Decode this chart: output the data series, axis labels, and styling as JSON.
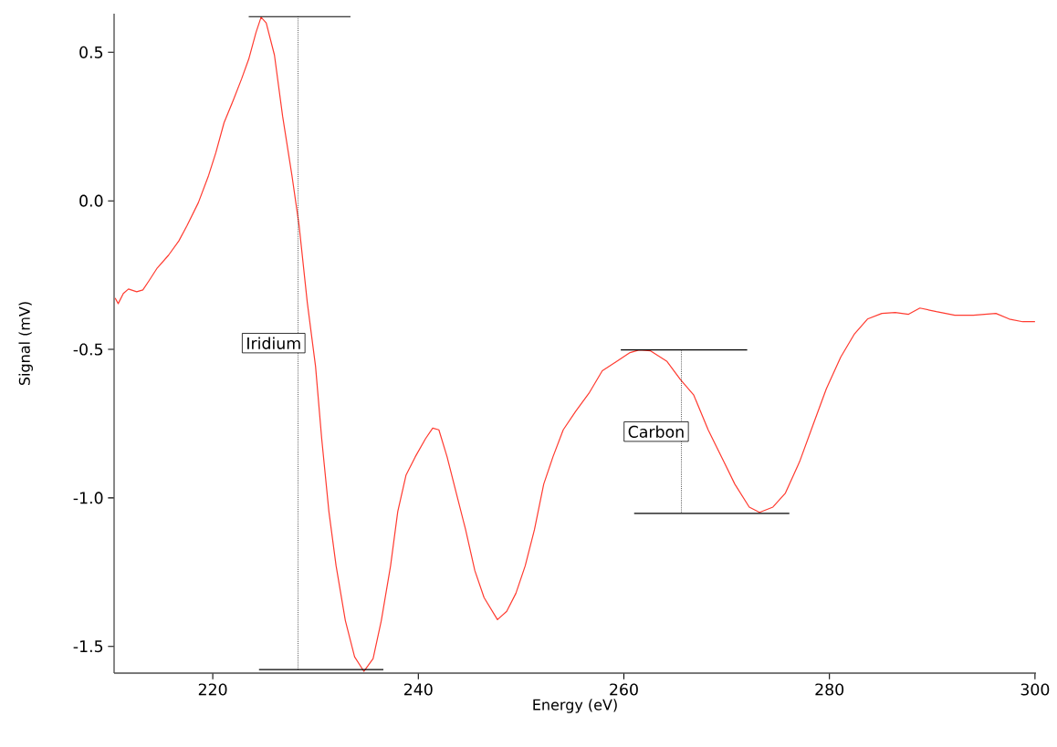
{
  "chart_data": {
    "type": "line",
    "xlabel": "Energy (eV)",
    "ylabel": "Signal (mV)",
    "xlim": [
      210.4,
      300.1
    ],
    "ylim": [
      -1.59,
      0.63
    ],
    "xticks": [
      220,
      240,
      260,
      280,
      300
    ],
    "yticks": [
      {
        "value": -1.5,
        "label": "-1.5"
      },
      {
        "value": -1.0,
        "label": "-1.0"
      },
      {
        "value": -0.5,
        "label": "-0.5"
      },
      {
        "value": 0.0,
        "label": "0.0"
      },
      {
        "value": 0.5,
        "label": "0.5"
      }
    ],
    "grid": false,
    "marker": "none",
    "series": [
      {
        "color": "#ff3b30",
        "line_style": "solid",
        "x": [
          210.5,
          210.8,
          211.3,
          211.8,
          212.6,
          213.2,
          213.8,
          214.6,
          215.7,
          216.7,
          217.5,
          218.6,
          219.6,
          220.3,
          221.1,
          222.0,
          222.8,
          223.5,
          224.2,
          224.7,
          225.2,
          226.0,
          226.8,
          227.7,
          228.4,
          229.2,
          230.0,
          230.6,
          231.3,
          232.0,
          232.9,
          233.8,
          234.7,
          235.6,
          236.4,
          237.3,
          238.0,
          238.8,
          239.7,
          240.7,
          241.4,
          242.0,
          242.8,
          243.7,
          244.6,
          245.5,
          246.4,
          247.7,
          248.6,
          249.5,
          250.4,
          251.3,
          252.2,
          253.1,
          254.1,
          255.3,
          256.6,
          257.9,
          259.3,
          260.6,
          261.5,
          262.6,
          264.2,
          265.5,
          266.8,
          268.2,
          269.5,
          270.8,
          272.2,
          273.2,
          274.5,
          275.7,
          277.1,
          278.4,
          279.7,
          281.1,
          282.4,
          283.7,
          285.1,
          286.4,
          287.7,
          288.8,
          290.4,
          292.2,
          294.0,
          296.2,
          297.5,
          298.8,
          300.0
        ],
        "values": [
          -0.327,
          -0.346,
          -0.312,
          -0.297,
          -0.306,
          -0.3,
          -0.269,
          -0.226,
          -0.183,
          -0.135,
          -0.083,
          -0.006,
          0.086,
          0.162,
          0.263,
          0.339,
          0.41,
          0.477,
          0.566,
          0.618,
          0.599,
          0.491,
          0.284,
          0.086,
          -0.083,
          -0.343,
          -0.557,
          -0.801,
          -1.046,
          -1.229,
          -1.413,
          -1.535,
          -1.584,
          -1.541,
          -1.413,
          -1.229,
          -1.046,
          -0.924,
          -0.862,
          -0.801,
          -0.765,
          -0.771,
          -0.862,
          -0.985,
          -1.107,
          -1.245,
          -1.336,
          -1.41,
          -1.382,
          -1.321,
          -1.229,
          -1.107,
          -0.954,
          -0.862,
          -0.771,
          -0.709,
          -0.648,
          -0.572,
          -0.541,
          -0.511,
          -0.502,
          -0.505,
          -0.541,
          -0.602,
          -0.654,
          -0.771,
          -0.862,
          -0.954,
          -1.031,
          -1.049,
          -1.031,
          -0.985,
          -0.878,
          -0.755,
          -0.633,
          -0.526,
          -0.45,
          -0.398,
          -0.379,
          -0.376,
          -0.382,
          -0.361,
          -0.373,
          -0.385,
          -0.385,
          -0.379,
          -0.398,
          -0.407,
          -0.407
        ]
      },
      {
        "color": "#000000",
        "line_style": "solid",
        "x": [
          223.5,
          233.4
        ],
        "values": [
          0.62,
          0.62
        ]
      },
      {
        "color": "#000000",
        "line_style": "dotted",
        "x": [
          228.3,
          228.3
        ],
        "values": [
          0.62,
          -1.578
        ]
      },
      {
        "color": "#000000",
        "line_style": "solid",
        "x": [
          224.5,
          236.6
        ],
        "values": [
          -1.578,
          -1.578
        ]
      },
      {
        "color": "#000000",
        "line_style": "solid",
        "x": [
          259.7,
          272.0
        ],
        "values": [
          -0.502,
          -0.502
        ]
      },
      {
        "color": "#000000",
        "line_style": "dotted",
        "x": [
          265.6,
          265.6
        ],
        "values": [
          -0.502,
          -1.052
        ]
      },
      {
        "color": "#000000",
        "line_style": "solid",
        "x": [
          261.0,
          276.1
        ],
        "values": [
          -1.052,
          -1.052
        ]
      }
    ],
    "annotations": [
      "Iridium",
      "Carbon"
    ]
  }
}
